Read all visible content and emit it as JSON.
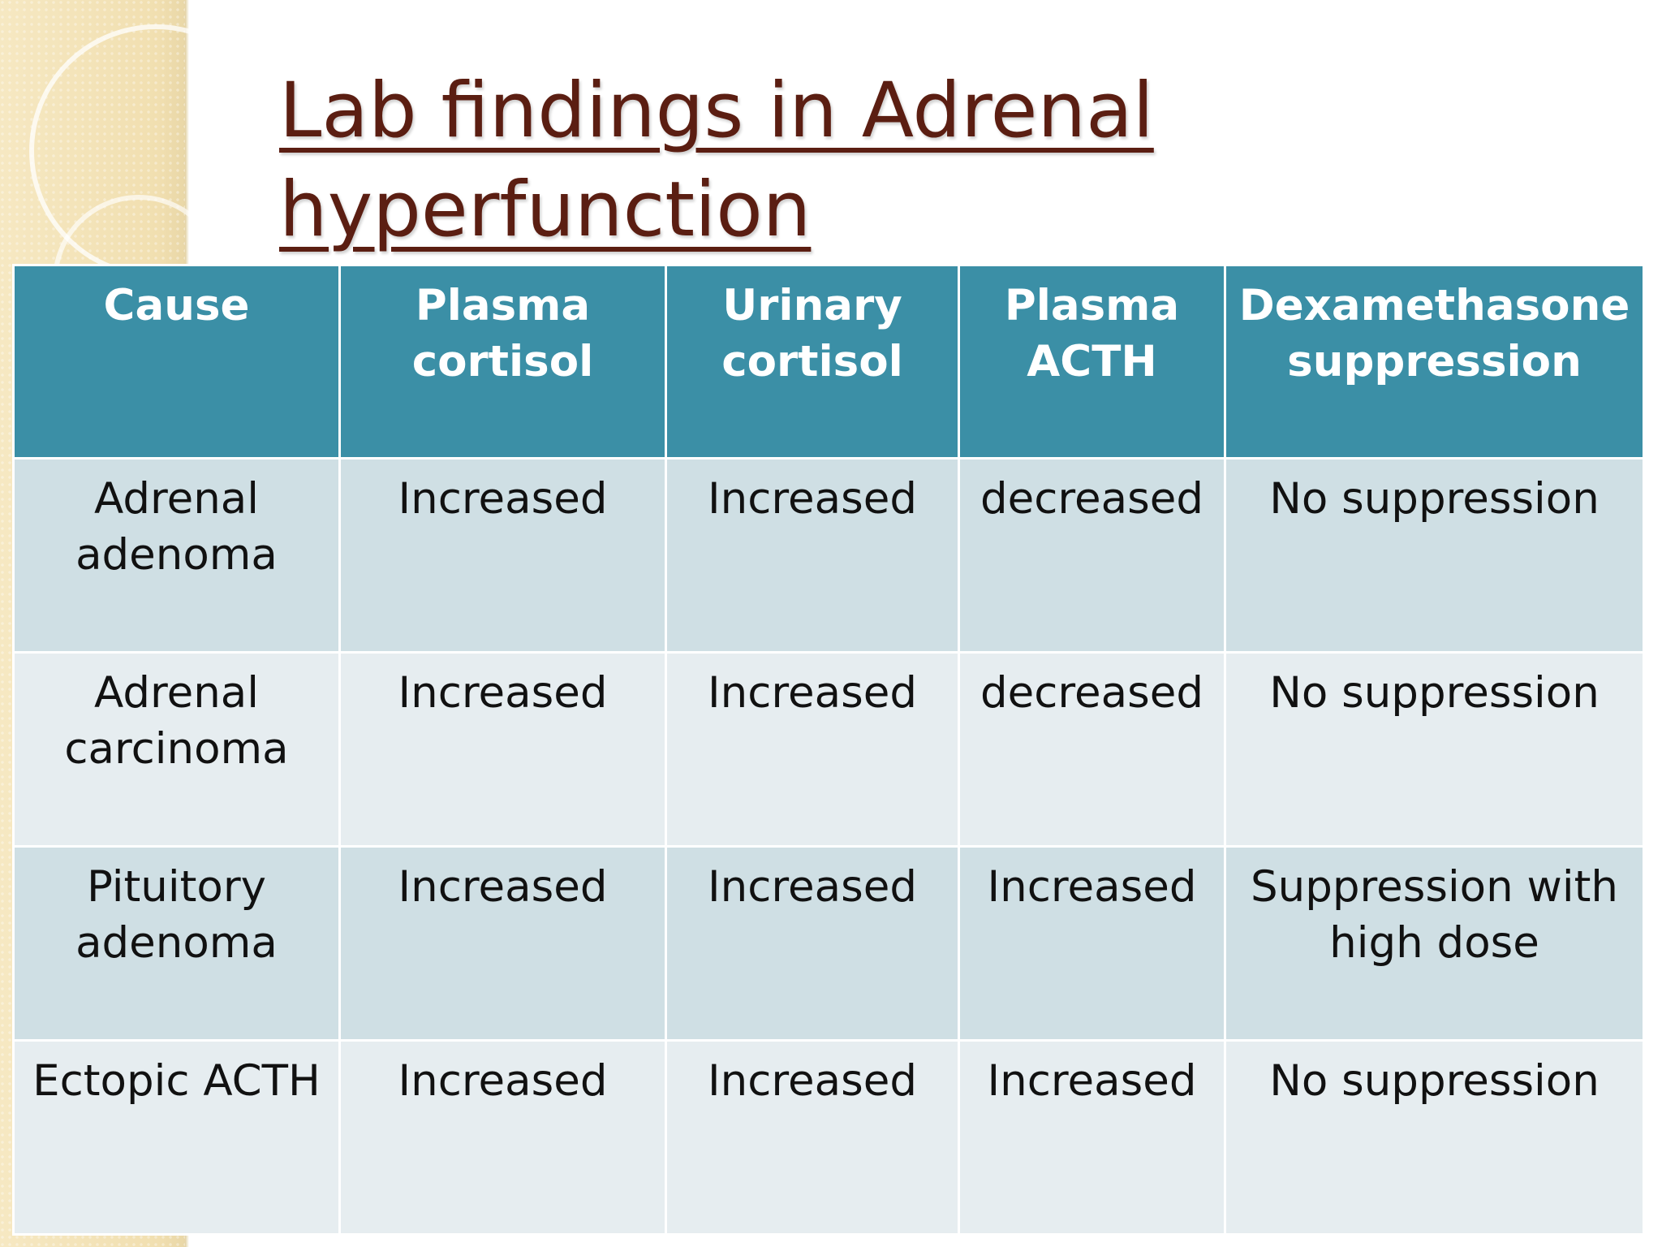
{
  "slide": {
    "title": "Lab findings in Adrenal hyperfunction"
  },
  "table": {
    "headers": [
      "Cause",
      "Plasma cortisol",
      "Urinary cortisol",
      "Plasma ACTH",
      "Dexamethasone suppression"
    ],
    "rows": [
      [
        "Adrenal adenoma",
        "Increased",
        "Increased",
        "decreased",
        "No suppression"
      ],
      [
        "Adrenal carcinoma",
        "Increased",
        "Increased",
        "decreased",
        "No suppression"
      ],
      [
        "Pituitory adenoma",
        "Increased",
        "Increased",
        "Increased",
        "Suppression with high dose"
      ],
      [
        "Ectopic ACTH",
        "Increased",
        "Increased",
        "Increased",
        "No suppression"
      ]
    ]
  },
  "colors": {
    "title": "#5b1e12",
    "header_bg": "#3b8fa6",
    "row_odd_bg": "#cfdfe4",
    "row_even_bg": "#e6edf0",
    "decor_band": "#f3e3b8"
  }
}
